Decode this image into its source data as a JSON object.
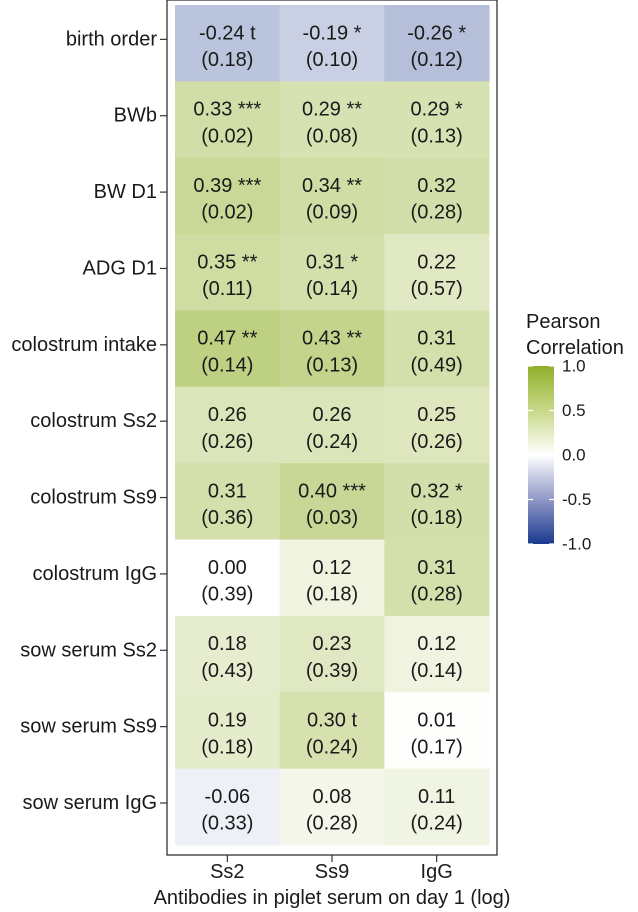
{
  "chart_data": {
    "type": "heatmap",
    "title": "",
    "xlabel": "Antibodies in piglet serum on day 1 (log)",
    "ylabel": "",
    "columns": [
      "Ss2",
      "Ss9",
      "IgG"
    ],
    "rows": [
      "birth order",
      "BWb",
      "BW D1",
      "ADG D1",
      "colostrum intake",
      "colostrum Ss2",
      "colostrum Ss9",
      "colostrum IgG",
      "sow serum Ss2",
      "sow serum Ss9",
      "sow serum IgG"
    ],
    "cells": [
      [
        {
          "value": -0.24,
          "label": "-0.24 t",
          "p": "(0.18)"
        },
        {
          "value": -0.19,
          "label": "-0.19 *",
          "p": "(0.10)"
        },
        {
          "value": -0.26,
          "label": "-0.26 *",
          "p": "(0.12)"
        }
      ],
      [
        {
          "value": 0.33,
          "label": "0.33 ***",
          "p": "(0.02)"
        },
        {
          "value": 0.29,
          "label": "0.29 **",
          "p": "(0.08)"
        },
        {
          "value": 0.29,
          "label": "0.29 *",
          "p": "(0.13)"
        }
      ],
      [
        {
          "value": 0.39,
          "label": "0.39 ***",
          "p": "(0.02)"
        },
        {
          "value": 0.34,
          "label": "0.34 **",
          "p": "(0.09)"
        },
        {
          "value": 0.32,
          "label": "0.32",
          "p": "(0.28)"
        }
      ],
      [
        {
          "value": 0.35,
          "label": "0.35 **",
          "p": "(0.11)"
        },
        {
          "value": 0.31,
          "label": "0.31 *",
          "p": "(0.14)"
        },
        {
          "value": 0.22,
          "label": "0.22",
          "p": "(0.57)"
        }
      ],
      [
        {
          "value": 0.47,
          "label": "0.47 **",
          "p": "(0.14)"
        },
        {
          "value": 0.43,
          "label": "0.43 **",
          "p": "(0.13)"
        },
        {
          "value": 0.31,
          "label": "0.31",
          "p": "(0.49)"
        }
      ],
      [
        {
          "value": 0.26,
          "label": "0.26",
          "p": "(0.26)"
        },
        {
          "value": 0.26,
          "label": "0.26",
          "p": "(0.24)"
        },
        {
          "value": 0.25,
          "label": "0.25",
          "p": "(0.26)"
        }
      ],
      [
        {
          "value": 0.31,
          "label": "0.31",
          "p": "(0.36)"
        },
        {
          "value": 0.4,
          "label": "0.40 ***",
          "p": "(0.03)"
        },
        {
          "value": 0.32,
          "label": "0.32 *",
          "p": "(0.18)"
        }
      ],
      [
        {
          "value": 0.0,
          "label": "0.00",
          "p": "(0.39)"
        },
        {
          "value": 0.12,
          "label": "0.12",
          "p": "(0.18)"
        },
        {
          "value": 0.31,
          "label": "0.31",
          "p": "(0.28)"
        }
      ],
      [
        {
          "value": 0.18,
          "label": "0.18",
          "p": "(0.43)"
        },
        {
          "value": 0.23,
          "label": "0.23",
          "p": "(0.39)"
        },
        {
          "value": 0.12,
          "label": "0.12",
          "p": "(0.14)"
        }
      ],
      [
        {
          "value": 0.19,
          "label": "0.19",
          "p": "(0.18)"
        },
        {
          "value": 0.3,
          "label": "0.30 t",
          "p": "(0.24)"
        },
        {
          "value": 0.01,
          "label": "0.01",
          "p": "(0.17)"
        }
      ],
      [
        {
          "value": -0.06,
          "label": "-0.06",
          "p": "(0.33)"
        },
        {
          "value": 0.08,
          "label": "0.08",
          "p": "(0.28)"
        },
        {
          "value": 0.11,
          "label": "0.11",
          "p": "(0.24)"
        }
      ]
    ],
    "legend": {
      "title_line1": "Pearson",
      "title_line2": "Correlation",
      "range": [
        -1.0,
        1.0
      ],
      "ticks": [
        {
          "value": 1.0,
          "label": "1.0"
        },
        {
          "value": 0.5,
          "label": "0.5"
        },
        {
          "value": 0.0,
          "label": "0.0"
        },
        {
          "value": -0.5,
          "label": "-0.5"
        },
        {
          "value": -1.0,
          "label": "-1.0"
        }
      ],
      "placement": "right"
    },
    "colors": {
      "high": "#91af2a",
      "mid": "#ffffff",
      "low": "#1a3a8e"
    }
  }
}
